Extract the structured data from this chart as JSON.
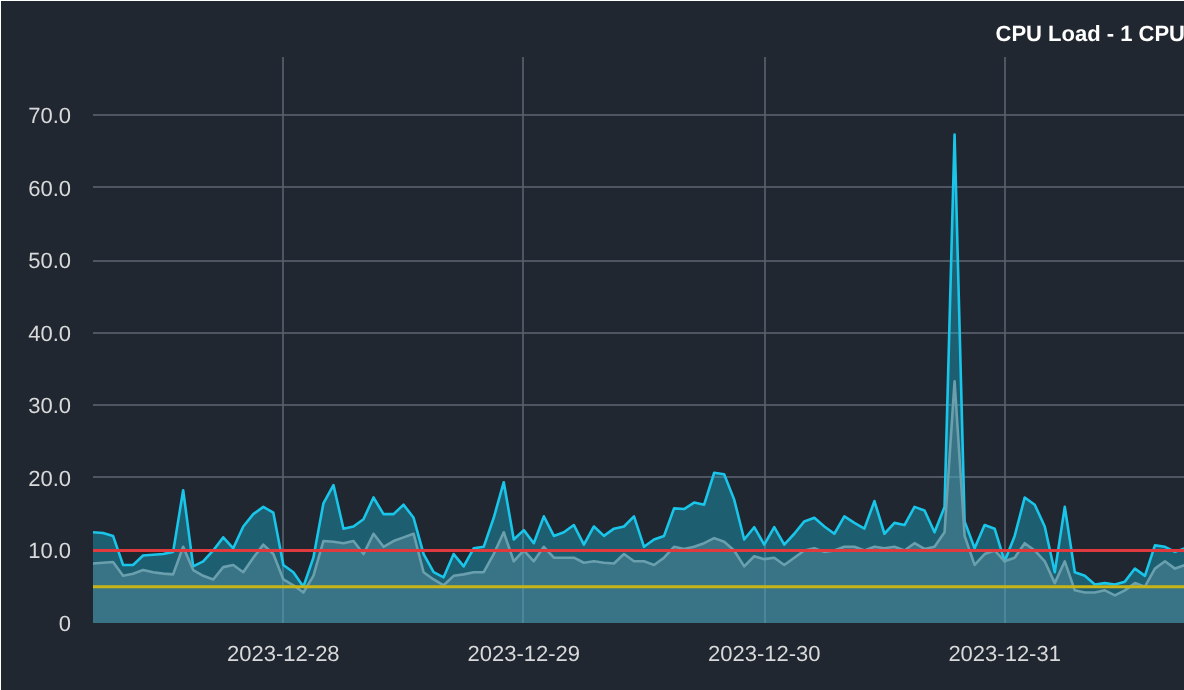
{
  "chart_data": {
    "type": "area",
    "title": "CPU Load - 1 CPU",
    "x": [
      "2023-12-27T05:00",
      "2023-12-27T06:00",
      "2023-12-27T07:00",
      "2023-12-27T08:00",
      "2023-12-27T09:00",
      "2023-12-27T10:00",
      "2023-12-27T11:00",
      "2023-12-27T12:00",
      "2023-12-27T13:00",
      "2023-12-27T14:00",
      "2023-12-27T15:00",
      "2023-12-27T16:00",
      "2023-12-27T17:00",
      "2023-12-27T18:00",
      "2023-12-27T19:00",
      "2023-12-27T20:00",
      "2023-12-27T21:00",
      "2023-12-27T22:00",
      "2023-12-27T23:00",
      "2023-12-28T00:00",
      "2023-12-28T01:00",
      "2023-12-28T02:00",
      "2023-12-28T03:00",
      "2023-12-28T04:00",
      "2023-12-28T05:00",
      "2023-12-28T06:00",
      "2023-12-28T07:00",
      "2023-12-28T08:00",
      "2023-12-28T09:00",
      "2023-12-28T10:00",
      "2023-12-28T11:00",
      "2023-12-28T12:00",
      "2023-12-28T13:00",
      "2023-12-28T14:00",
      "2023-12-28T15:00",
      "2023-12-28T16:00",
      "2023-12-28T17:00",
      "2023-12-28T18:00",
      "2023-12-28T19:00",
      "2023-12-28T20:00",
      "2023-12-28T21:00",
      "2023-12-28T22:00",
      "2023-12-28T23:00",
      "2023-12-29T00:00",
      "2023-12-29T01:00",
      "2023-12-29T02:00",
      "2023-12-29T03:00",
      "2023-12-29T04:00",
      "2023-12-29T05:00",
      "2023-12-29T06:00",
      "2023-12-29T07:00",
      "2023-12-29T08:00",
      "2023-12-29T09:00",
      "2023-12-29T10:00",
      "2023-12-29T11:00",
      "2023-12-29T12:00",
      "2023-12-29T13:00",
      "2023-12-29T14:00",
      "2023-12-29T15:00",
      "2023-12-29T16:00",
      "2023-12-29T17:00",
      "2023-12-29T18:00",
      "2023-12-29T19:00",
      "2023-12-29T20:00",
      "2023-12-29T21:00",
      "2023-12-29T22:00",
      "2023-12-29T23:00",
      "2023-12-30T00:00",
      "2023-12-30T01:00",
      "2023-12-30T02:00",
      "2023-12-30T03:00",
      "2023-12-30T04:00",
      "2023-12-30T05:00",
      "2023-12-30T06:00",
      "2023-12-30T07:00",
      "2023-12-30T08:00",
      "2023-12-30T09:00",
      "2023-12-30T10:00",
      "2023-12-30T11:00",
      "2023-12-30T12:00",
      "2023-12-30T13:00",
      "2023-12-30T14:00",
      "2023-12-30T15:00",
      "2023-12-30T16:00",
      "2023-12-30T17:00",
      "2023-12-30T18:00",
      "2023-12-30T19:00",
      "2023-12-30T20:00",
      "2023-12-30T21:00",
      "2023-12-30T22:00",
      "2023-12-30T23:00",
      "2023-12-31T00:00",
      "2023-12-31T01:00",
      "2023-12-31T02:00",
      "2023-12-31T03:00",
      "2023-12-31T04:00",
      "2023-12-31T05:00",
      "2023-12-31T06:00",
      "2023-12-31T07:00",
      "2023-12-31T08:00",
      "2023-12-31T09:00",
      "2023-12-31T10:00",
      "2023-12-31T11:00",
      "2023-12-31T12:00",
      "2023-12-31T13:00",
      "2023-12-31T14:00",
      "2023-12-31T15:00",
      "2023-12-31T16:00",
      "2023-12-31T17:00",
      "2023-12-31T18:00"
    ],
    "series": [
      {
        "color": "#19c6ea",
        "values": [
          12.5,
          12.4,
          12,
          8,
          8,
          9.3,
          9.4,
          9.5,
          9.8,
          18.3,
          7.8,
          8.5,
          10,
          11.8,
          10.3,
          13.3,
          15,
          16,
          15.2,
          8,
          7,
          5,
          9,
          16.5,
          19,
          13,
          13.3,
          14.3,
          17.3,
          15,
          15,
          16.3,
          14.5,
          9.5,
          7,
          6.3,
          9.5,
          7.8,
          10.3,
          10.5,
          14.5,
          19.4,
          11.5,
          12.8,
          11,
          14.7,
          12,
          12.5,
          13.5,
          10.8,
          13.3,
          12,
          13,
          13.3,
          14.7,
          10.5,
          11.5,
          12,
          15.8,
          15.7,
          16.6,
          16.3,
          20.7,
          20.5,
          17,
          11.5,
          13.2,
          10.8,
          13.2,
          10.8,
          12.3,
          14,
          14.5,
          13.3,
          12.3,
          14.7,
          13.8,
          13,
          16.8,
          12.3,
          13.8,
          13.5,
          16,
          15.5,
          12.5,
          16,
          67.3,
          14,
          10.3,
          13.5,
          13,
          8.5,
          12,
          17.3,
          16.3,
          13.3,
          7,
          16,
          7,
          6.5,
          5.3,
          5.5,
          5.3,
          5.7,
          7.5,
          6.5,
          10.7,
          10.5,
          9.8,
          10.3
        ]
      },
      {
        "color": "#6a9fae",
        "values": [
          8.2,
          8.3,
          8.4,
          6.5,
          6.8,
          7.3,
          7,
          6.8,
          6.7,
          10.5,
          7.3,
          6.5,
          6,
          7.7,
          8,
          7,
          9,
          10.8,
          9.5,
          6,
          5.2,
          4.2,
          6.5,
          11.3,
          11.2,
          11,
          11.3,
          9.5,
          12.3,
          10.5,
          11.3,
          11.8,
          12.3,
          7,
          6,
          5.2,
          6.5,
          6.7,
          7,
          7,
          9.5,
          12.5,
          8.5,
          10,
          8.5,
          10.5,
          9,
          9,
          9,
          8.3,
          8.5,
          8.3,
          8.2,
          9.5,
          8.5,
          8.5,
          8,
          9,
          10.5,
          10.2,
          10.5,
          11,
          11.7,
          11.2,
          10,
          7.8,
          9.2,
          8.8,
          9,
          8,
          9,
          10,
          10.3,
          9.8,
          10,
          10.5,
          10.5,
          10,
          10.5,
          10.3,
          10.5,
          10,
          11,
          10.2,
          10.5,
          12.5,
          33.3,
          12,
          8,
          9.5,
          10,
          8.5,
          9,
          11,
          10,
          8.5,
          5.5,
          8.5,
          4.5,
          4.2,
          4.2,
          4.5,
          3.8,
          4.5,
          5.5,
          5,
          7.5,
          8.5,
          7.5,
          8
        ]
      }
    ],
    "xlim": [
      "2023-12-27T05:00",
      "2023-12-31T18:00"
    ],
    "xticks": [
      "2023-12-28",
      "2023-12-29",
      "2023-12-30",
      "2023-12-31"
    ],
    "ylim": [
      0,
      78
    ],
    "yticks": [
      0,
      {
        "value": 10,
        "label": "10.0"
      },
      {
        "value": 20,
        "label": "20.0"
      },
      {
        "value": 30,
        "label": "30.0"
      },
      {
        "value": 40,
        "label": "40.0"
      },
      {
        "value": 50,
        "label": "50.0"
      },
      {
        "value": 60,
        "label": "60.0"
      },
      {
        "value": 70,
        "label": "70.0"
      }
    ],
    "ref_lines": [
      {
        "axis": "y",
        "value": 10,
        "color": "#e0393e"
      },
      {
        "axis": "y",
        "value": 5,
        "color": "#c8b416"
      }
    ],
    "grid": true
  }
}
